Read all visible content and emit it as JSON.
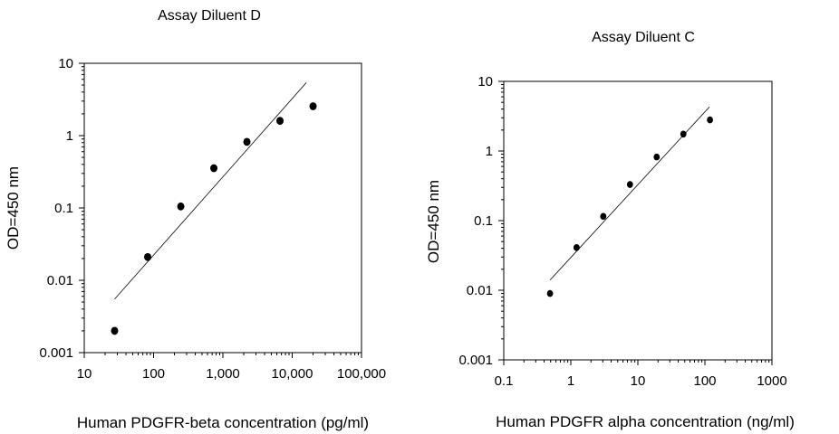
{
  "chart_data": [
    {
      "type": "scatter",
      "title": "Assay Diluent D",
      "xlabel": "Human PDGFR-beta concentration (pg/ml)",
      "ylabel": "OD=450 nm",
      "x_scale": "log",
      "y_scale": "log",
      "xlim": [
        10,
        100000
      ],
      "ylim": [
        0.001,
        10
      ],
      "x_ticks": [
        10,
        100,
        1000,
        10000,
        100000
      ],
      "x_tick_labels": [
        "10",
        "100",
        "1,000",
        "10,000",
        "100,000"
      ],
      "y_ticks": [
        0.001,
        0.01,
        0.1,
        1,
        10
      ],
      "y_tick_labels": [
        "0.001",
        "0.01",
        "0.1",
        "1",
        "10"
      ],
      "grid": false,
      "legend": "none",
      "series": [
        {
          "x": [
            27.4,
            82.3,
            247,
            741,
            2222,
            6667,
            20000
          ],
          "y": [
            0.002,
            0.021,
            0.105,
            0.355,
            0.82,
            1.6,
            2.55
          ]
        }
      ],
      "fit_line": {
        "x": [
          27.4,
          16000
        ],
        "y": [
          0.0055,
          5.4
        ]
      }
    },
    {
      "type": "scatter",
      "title": "Assay Diluent C",
      "xlabel": "Human PDGFR alpha concentration (ng/ml)",
      "ylabel": "OD=450 nm",
      "x_scale": "log",
      "y_scale": "log",
      "xlim": [
        0.1,
        1000
      ],
      "ylim": [
        0.001,
        10
      ],
      "x_ticks": [
        0.1,
        1,
        10,
        100,
        1000
      ],
      "x_tick_labels": [
        "0.1",
        "1",
        "10",
        "100",
        "1000"
      ],
      "y_ticks": [
        0.001,
        0.01,
        0.1,
        1,
        10
      ],
      "y_tick_labels": [
        "0.001",
        "0.01",
        "0.1",
        "1",
        "10"
      ],
      "grid": false,
      "legend": "none",
      "series": [
        {
          "x": [
            0.49,
            1.22,
            3.05,
            7.63,
            19.1,
            47.7,
            119
          ],
          "y": [
            0.009,
            0.041,
            0.115,
            0.33,
            0.82,
            1.75,
            2.8
          ]
        }
      ],
      "fit_line": {
        "x": [
          0.49,
          117
        ],
        "y": [
          0.014,
          4.3
        ]
      }
    }
  ]
}
